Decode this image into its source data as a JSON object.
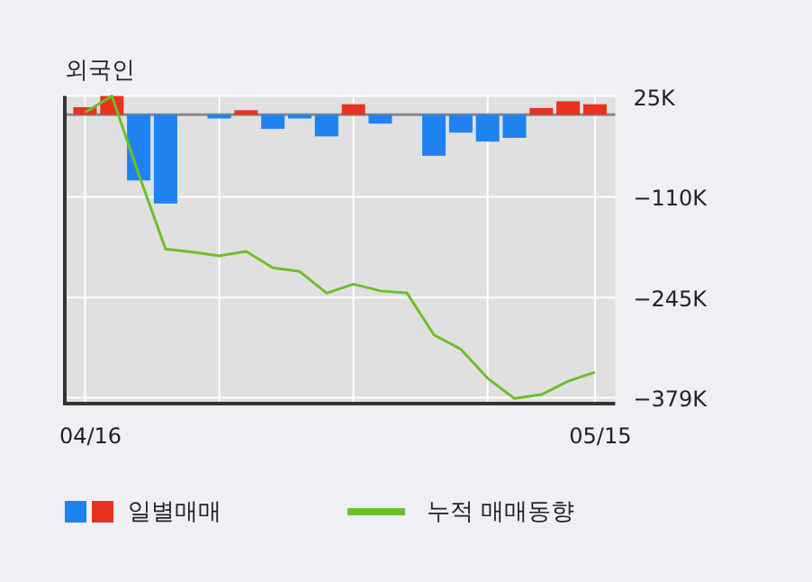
{
  "chart_data": {
    "type": "bar",
    "title": "외국인",
    "categories": [
      "04/16",
      null,
      null,
      null,
      null,
      null,
      null,
      null,
      null,
      null,
      null,
      null,
      null,
      null,
      null,
      null,
      null,
      null,
      null,
      "05/15"
    ],
    "series": [
      {
        "name": "일별매매",
        "colors": [
          "#e8321e",
          "#e8321e",
          "#1e82f0",
          "#1e82f0",
          "#1e82f0",
          "#1e82f0",
          "#e8321e",
          "#1e82f0",
          "#1e82f0",
          "#1e82f0",
          "#e8321e",
          "#1e82f0",
          "#1e82f0",
          "#1e82f0",
          "#1e82f0",
          "#1e82f0",
          "#1e82f0",
          "#e8321e",
          "#e8321e",
          "#e8321e"
        ],
        "values": [
          10,
          25,
          -88,
          -119,
          0,
          -5,
          6,
          -19,
          -5,
          -29,
          14,
          -12,
          0,
          -55,
          -24,
          -36,
          -31,
          9,
          18,
          14
        ]
      },
      {
        "name": "누적 매매동향",
        "type": "line",
        "color": "#6cbf2a",
        "values": [
          3,
          25,
          -80,
          -180,
          -184,
          -189,
          -183,
          -205,
          -210,
          -239,
          -227,
          -236,
          -239,
          -295,
          -314,
          -353,
          -380,
          -375,
          -357,
          -345
        ]
      }
    ],
    "ylim": [
      -387,
      25
    ],
    "yticks": [
      {
        "value": 25,
        "label": "25K"
      },
      {
        "value": -110,
        "label": "−110K"
      },
      {
        "value": -245,
        "label": "−245K"
      },
      {
        "value": -379,
        "label": "−379K"
      }
    ],
    "ref_lines": [
      {
        "axis": "y",
        "value": 0,
        "color": "#888888"
      }
    ],
    "grid": true,
    "legend": "bottom"
  }
}
